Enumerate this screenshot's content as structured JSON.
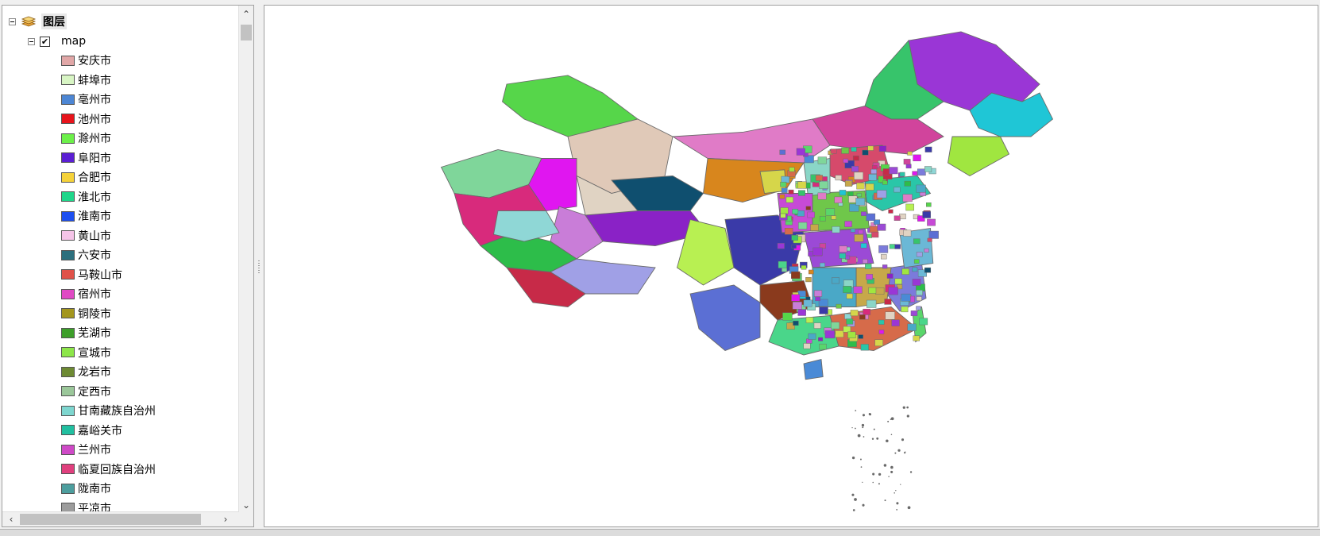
{
  "toc": {
    "root": {
      "label": "图层",
      "icon": "layers-icon",
      "expanded": true
    },
    "layer": {
      "label": "map",
      "checked": true,
      "check_glyph": "✔",
      "expanded": true
    },
    "legend": [
      {
        "label": "安庆市",
        "color": "#e1a7a7"
      },
      {
        "label": "蚌埠市",
        "color": "#d8f5c4"
      },
      {
        "label": "亳州市",
        "color": "#4d86d4"
      },
      {
        "label": "池州市",
        "color": "#e8141c"
      },
      {
        "label": "滁州市",
        "color": "#6cf04a"
      },
      {
        "label": "阜阳市",
        "color": "#5b1fd4"
      },
      {
        "label": "合肥市",
        "color": "#f5d23a"
      },
      {
        "label": "淮北市",
        "color": "#1fd68a"
      },
      {
        "label": "淮南市",
        "color": "#1d4ff0"
      },
      {
        "label": "黄山市",
        "color": "#f5c4e8"
      },
      {
        "label": "六安市",
        "color": "#2c6f7d"
      },
      {
        "label": "马鞍山市",
        "color": "#e0524a"
      },
      {
        "label": "宿州市",
        "color": "#e04ac4"
      },
      {
        "label": "铜陵市",
        "color": "#a3961e"
      },
      {
        "label": "芜湖市",
        "color": "#3d9e2a"
      },
      {
        "label": "宣城市",
        "color": "#8de64a"
      },
      {
        "label": "龙岩市",
        "color": "#6d8a33"
      },
      {
        "label": "定西市",
        "color": "#9bc79a"
      },
      {
        "label": "甘南藏族自治州",
        "color": "#7ed6cf"
      },
      {
        "label": "嘉峪关市",
        "color": "#21bfa0"
      },
      {
        "label": "兰州市",
        "color": "#cf4ac7"
      },
      {
        "label": "临夏回族自治州",
        "color": "#e0407e"
      },
      {
        "label": "陇南市",
        "color": "#4d9e9e"
      },
      {
        "label": "平凉市",
        "color": "#9c9c9c"
      }
    ],
    "scroll_up_glyph": "⌃",
    "scroll_down_glyph": "⌄",
    "scroll_left_glyph": "‹",
    "scroll_right_glyph": "›"
  },
  "map": {
    "border_color": "#6a6a6a",
    "regions": [
      {
        "id": "heilongjiang",
        "color": "#9a36d6"
      },
      {
        "id": "jilin",
        "color": "#1fc6d6"
      },
      {
        "id": "liaoning",
        "color": "#a0e640"
      },
      {
        "id": "inner-mongolia-east",
        "color": "#37c46b"
      },
      {
        "id": "inner-mongolia-central",
        "color": "#d1449c"
      },
      {
        "id": "inner-mongolia-west",
        "color": "#e07bc7"
      },
      {
        "id": "xinjiang-north",
        "color": "#56d64a"
      },
      {
        "id": "xinjiang-east",
        "color": "#e0c9b8"
      },
      {
        "id": "xinjiang-south-a",
        "color": "#e016f0"
      },
      {
        "id": "xinjiang-south-b",
        "color": "#e0d3c3"
      },
      {
        "id": "xinjiang-west",
        "color": "#7fd69a"
      },
      {
        "id": "xinjiang-sw",
        "color": "#d82a7c"
      },
      {
        "id": "gansu",
        "color": "#d8861d"
      },
      {
        "id": "qinghai-north",
        "color": "#0f4f6f"
      },
      {
        "id": "qinghai-central",
        "color": "#8a22c6"
      },
      {
        "id": "qinghai-south",
        "color": "#c97dd8"
      },
      {
        "id": "tibet-west",
        "color": "#2dbd4a"
      },
      {
        "id": "tibet-north",
        "color": "#8fd7d6"
      },
      {
        "id": "tibet-central",
        "color": "#a0a0e6"
      },
      {
        "id": "tibet-south",
        "color": "#c72a48"
      },
      {
        "id": "tibet-east",
        "color": "#b8f052"
      },
      {
        "id": "sichuan",
        "color": "#3a3aa8"
      },
      {
        "id": "yunnan",
        "color": "#5b6fd4"
      },
      {
        "id": "guizhou",
        "color": "#8a3a1d"
      },
      {
        "id": "guangxi",
        "color": "#4ad68a"
      },
      {
        "id": "guangdong",
        "color": "#d66b4a"
      },
      {
        "id": "fujian",
        "color": "#7b7bdb"
      },
      {
        "id": "zhejiang",
        "color": "#6bb8d6"
      },
      {
        "id": "jiangxi",
        "color": "#c7a84a"
      },
      {
        "id": "hunan",
        "color": "#4aa8c7"
      },
      {
        "id": "hubei",
        "color": "#9b4ad6"
      },
      {
        "id": "henan",
        "color": "#6fc74a"
      },
      {
        "id": "shandong",
        "color": "#2ac6a8"
      },
      {
        "id": "hebei",
        "color": "#d64a6b"
      },
      {
        "id": "shanxi",
        "color": "#8ad6c7"
      },
      {
        "id": "shaanxi",
        "color": "#c74ad6"
      },
      {
        "id": "ningxia",
        "color": "#d6d64a"
      },
      {
        "id": "hainan",
        "color": "#4a8ad6"
      },
      {
        "id": "taiwan",
        "color": "#5ad66b"
      }
    ]
  }
}
